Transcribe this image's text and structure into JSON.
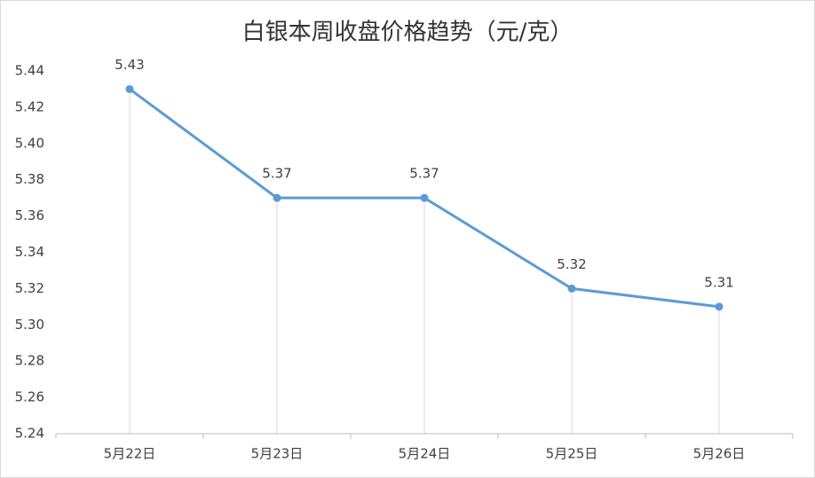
{
  "chart_data": {
    "type": "line",
    "title": "白银本周收盘价格趋势（元/克）",
    "categories": [
      "5月22日",
      "5月23日",
      "5月24日",
      "5月25日",
      "5月26日"
    ],
    "values": [
      5.43,
      5.37,
      5.37,
      5.32,
      5.31
    ],
    "color": "#5b9bd5",
    "ylim": [
      5.24,
      5.44
    ],
    "yticks": [
      5.24,
      5.26,
      5.28,
      {
        "value": 5.3,
        "label": "5.30"
      },
      5.32,
      5.34,
      5.36,
      5.38,
      {
        "value": 5.4,
        "label": "5.40"
      },
      5.42,
      5.44
    ],
    "grid": false,
    "drop_lines": true
  }
}
